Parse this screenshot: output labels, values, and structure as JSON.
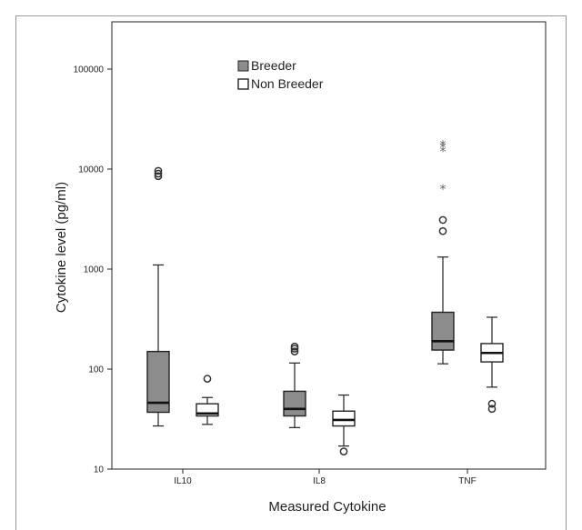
{
  "chart_data": {
    "type": "box",
    "xlabel": "Measured Cytokine",
    "ylabel": "Cytokine level (pg/ml)",
    "yscale": "log",
    "ylim": [
      10,
      300000
    ],
    "yticks": [
      10,
      100,
      1000,
      10000,
      100000
    ],
    "ytick_labels": [
      "10",
      "100",
      "1000",
      "10000",
      "100000"
    ],
    "categories": [
      "IL10",
      "IL8",
      "TNF"
    ],
    "legend_position": "top-center",
    "series": [
      {
        "name": "Breeder",
        "color": "#8c8c8c",
        "boxes": [
          {
            "category": "IL10",
            "whisker_low": 27,
            "q1": 37,
            "median": 46,
            "q3": 150,
            "whisker_high": 1100,
            "outliers": [
              8500,
              9000,
              9600
            ],
            "extremes": []
          },
          {
            "category": "IL8",
            "whisker_low": 26,
            "q1": 34,
            "median": 40,
            "q3": 60,
            "whisker_high": 115,
            "outliers": [
              150,
              160,
              168
            ],
            "extremes": []
          },
          {
            "category": "TNF",
            "whisker_low": 113,
            "q1": 155,
            "median": 190,
            "q3": 370,
            "whisker_high": 1320,
            "outliers": [
              2400,
              3100
            ],
            "extremes": [
              6300,
              15000,
              16500,
              17500
            ]
          }
        ]
      },
      {
        "name": "Non Breeder",
        "color": "#ffffff",
        "boxes": [
          {
            "category": "IL10",
            "whisker_low": 28,
            "q1": 34,
            "median": 36,
            "q3": 45,
            "whisker_high": 52,
            "outliers": [
              80
            ],
            "extremes": []
          },
          {
            "category": "IL8",
            "whisker_low": 17,
            "q1": 27,
            "median": 31,
            "q3": 38,
            "whisker_high": 55,
            "outliers": [
              15
            ],
            "extremes": []
          },
          {
            "category": "TNF",
            "whisker_low": 66,
            "q1": 118,
            "median": 145,
            "q3": 180,
            "whisker_high": 330,
            "outliers": [
              40,
              45
            ],
            "extremes": []
          }
        ]
      }
    ]
  }
}
